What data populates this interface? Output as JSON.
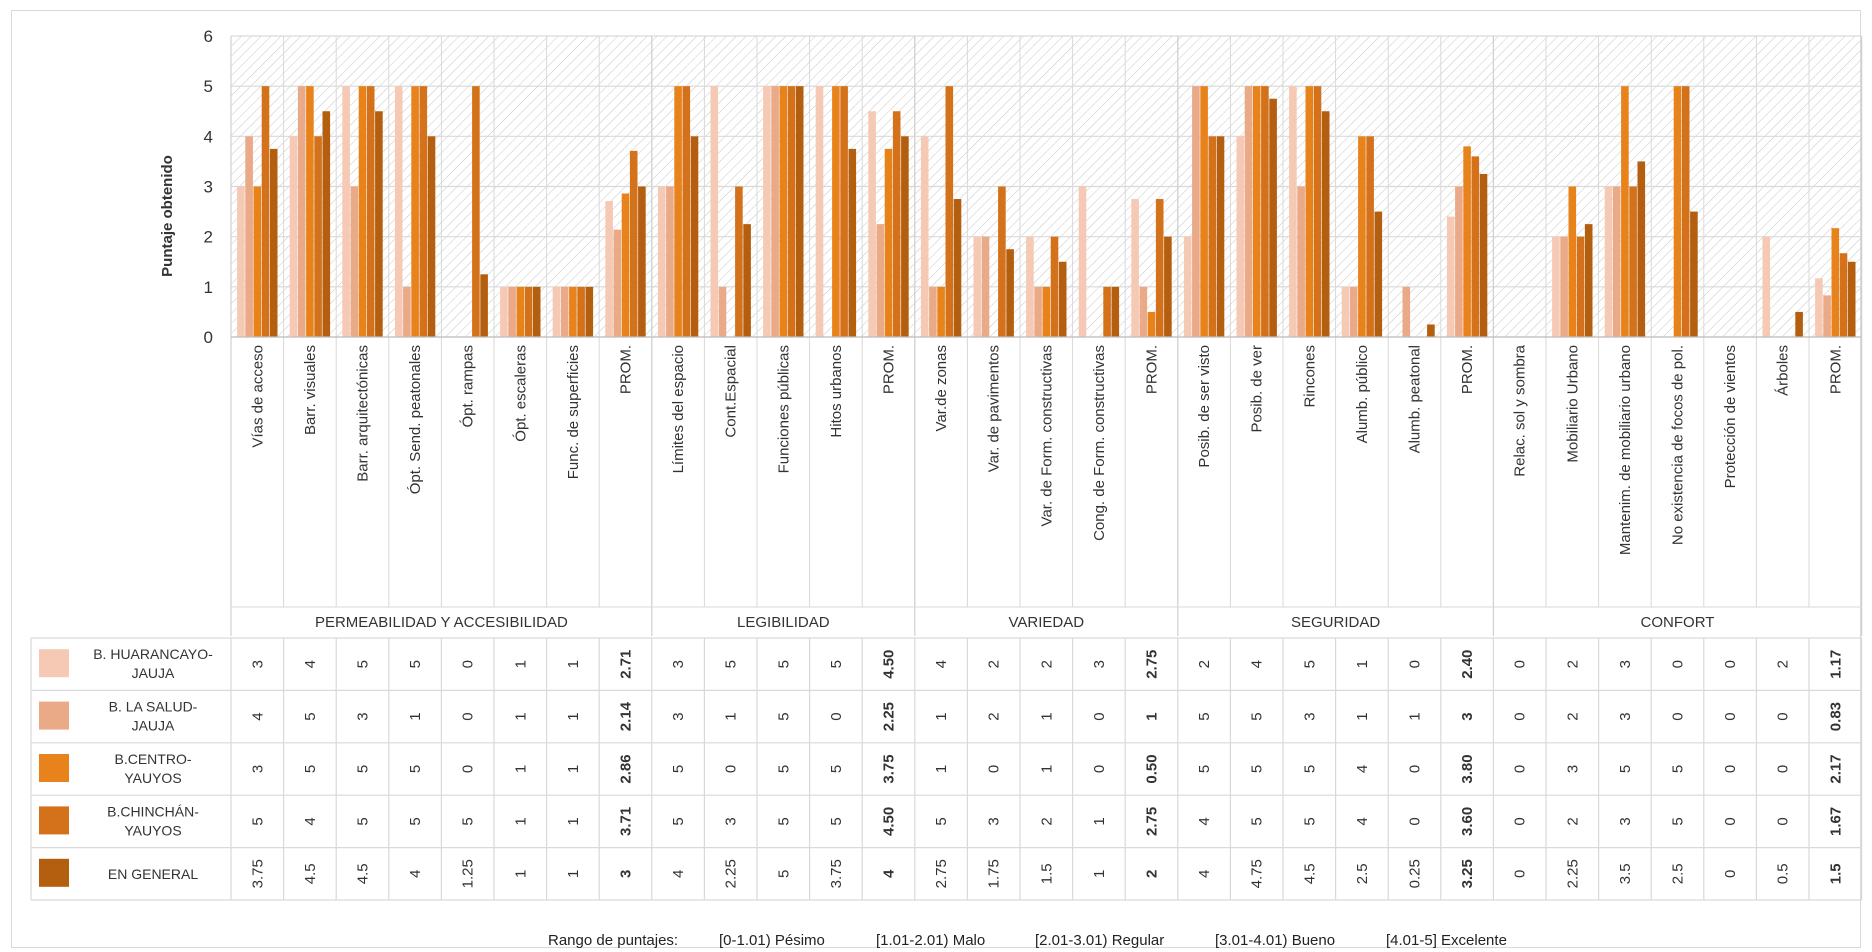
{
  "colors": {
    "series": [
      "#f5c9b4",
      "#eaa987",
      "#e8831b",
      "#d4711b",
      "#b45f0f"
    ],
    "grid": "#d9d9d9",
    "hatch": "#bfbfbf",
    "text": "#333333"
  },
  "chart_data": {
    "type": "bar",
    "title": "",
    "xlabel": "",
    "ylabel": "Puntaje obtenido",
    "ylim": [
      0,
      6
    ],
    "yticks": [
      "0",
      "1",
      "2",
      "3",
      "4",
      "5",
      "6"
    ],
    "grid": true,
    "background_hatch": true,
    "categories": [
      "Vías de acceso",
      "Barr. visuales",
      "Barr. arquitectónicas",
      "Ópt. Send. peatonales",
      "Ópt. rampas",
      "Ópt. escaleras",
      "Func. de superficies",
      "PROM.",
      "Límites del espacio",
      "Cont.Espacial",
      "Funciones públicas",
      "Hitos urbanos",
      "PROM.",
      "Var.de zonas",
      "Var. de pavimentos",
      "Var. de Form. constructivas",
      "Cong. de Form. constructivas",
      "PROM.",
      "Posib. de ser visto",
      "Posib. de ver",
      "Rincones",
      "Alumb. público",
      "Alumb. peatonal",
      "PROM.",
      "Relac. sol y sombra",
      "Mobiliario Urbano",
      "Mantenim. de mobiliario urbano",
      "No existencia de focos de pol.",
      "Protección de vientos",
      "Árboles",
      "PROM."
    ],
    "groups": [
      {
        "name": "PERMEABILIDAD Y ACCESIBILIDAD",
        "count": 8
      },
      {
        "name": "LEGIBILIDAD",
        "count": 5
      },
      {
        "name": "VARIEDAD",
        "count": 5
      },
      {
        "name": "SEGURIDAD",
        "count": 6
      },
      {
        "name": "CONFORT",
        "count": 7
      }
    ],
    "series": [
      {
        "name": "B. HUARANCAYO-JAUJA",
        "values": [
          3,
          4,
          5,
          5,
          0,
          1,
          1,
          2.71,
          3,
          5,
          5,
          5,
          4.5,
          4,
          2,
          2,
          3,
          2.75,
          2,
          4,
          5,
          1,
          0,
          2.4,
          0,
          2,
          3,
          0,
          0,
          2,
          1.17
        ],
        "labels": [
          "3",
          "4",
          "5",
          "5",
          "0",
          "1",
          "1",
          "2.71",
          "3",
          "5",
          "5",
          "5",
          "4.50",
          "4",
          "2",
          "2",
          "3",
          "2.75",
          "2",
          "4",
          "5",
          "1",
          "0",
          "2.40",
          "0",
          "2",
          "3",
          "0",
          "0",
          "2",
          "1.17"
        ]
      },
      {
        "name": "B. LA SALUD-JAUJA",
        "values": [
          4,
          5,
          3,
          1,
          0,
          1,
          1,
          2.14,
          3,
          1,
          5,
          0,
          2.25,
          1,
          2,
          1,
          0,
          1,
          5,
          5,
          3,
          1,
          1,
          3,
          0,
          2,
          3,
          0,
          0,
          0,
          0.83
        ],
        "labels": [
          "4",
          "5",
          "3",
          "1",
          "0",
          "1",
          "1",
          "2.14",
          "3",
          "1",
          "5",
          "0",
          "2.25",
          "1",
          "2",
          "1",
          "0",
          "1",
          "5",
          "5",
          "3",
          "1",
          "1",
          "3",
          "0",
          "2",
          "3",
          "0",
          "0",
          "0",
          "0.83"
        ]
      },
      {
        "name": "B.CENTRO-YAUYOS",
        "values": [
          3,
          5,
          5,
          5,
          0,
          1,
          1,
          2.86,
          5,
          0,
          5,
          5,
          3.75,
          1,
          0,
          1,
          0,
          0.5,
          5,
          5,
          5,
          4,
          0,
          3.8,
          0,
          3,
          5,
          5,
          0,
          0,
          2.17
        ],
        "labels": [
          "3",
          "5",
          "5",
          "5",
          "0",
          "1",
          "1",
          "2.86",
          "5",
          "0",
          "5",
          "5",
          "3.75",
          "1",
          "0",
          "1",
          "0",
          "0.50",
          "5",
          "5",
          "5",
          "4",
          "0",
          "3.80",
          "0",
          "3",
          "5",
          "5",
          "0",
          "0",
          "2.17"
        ]
      },
      {
        "name": "B.CHINCHÁN-YAUYOS",
        "values": [
          5,
          4,
          5,
          5,
          5,
          1,
          1,
          3.71,
          5,
          3,
          5,
          5,
          4.5,
          5,
          3,
          2,
          1,
          2.75,
          4,
          5,
          5,
          4,
          0,
          3.6,
          0,
          2,
          3,
          5,
          0,
          0,
          1.67
        ],
        "labels": [
          "5",
          "4",
          "5",
          "5",
          "5",
          "1",
          "1",
          "3.71",
          "5",
          "3",
          "5",
          "5",
          "4.50",
          "5",
          "3",
          "2",
          "1",
          "2.75",
          "4",
          "5",
          "5",
          "4",
          "0",
          "3.60",
          "0",
          "2",
          "3",
          "5",
          "0",
          "0",
          "1.67"
        ]
      },
      {
        "name": "EN GENERAL",
        "values": [
          3.75,
          4.5,
          4.5,
          4,
          1.25,
          1,
          1,
          3,
          4,
          2.25,
          5,
          3.75,
          4,
          2.75,
          1.75,
          1.5,
          1,
          2,
          4,
          4.75,
          4.5,
          2.5,
          0.25,
          3.25,
          0,
          2.25,
          3.5,
          2.5,
          0,
          0.5,
          1.5
        ],
        "labels": [
          "3.75",
          "4.5",
          "4.5",
          "4",
          "1.25",
          "1",
          "1",
          "3",
          "4",
          "2.25",
          "5",
          "3.75",
          "4",
          "2.75",
          "1.75",
          "1.5",
          "1",
          "2",
          "4",
          "4.75",
          "4.5",
          "2.5",
          "0.25",
          "3.25",
          "0",
          "2.25",
          "3.5",
          "2.5",
          "0",
          "0.5",
          "1.5"
        ]
      }
    ],
    "table_legend_labels": [
      [
        "B. HUARANCAYO-",
        "JAUJA"
      ],
      [
        "B. LA SALUD-",
        "JAUJA"
      ],
      [
        "B.CENTRO-",
        "YAUYOS"
      ],
      [
        "B.CHINCHÁN-",
        "YAUYOS"
      ],
      [
        "EN GENERAL"
      ]
    ],
    "annotations": {
      "range_title": "Rango de puntajes:",
      "ranges": [
        "[0-1.01) Pésimo",
        "[1.01-2.01) Malo",
        "[2.01-3.01) Regular",
        "[3.01-4.01) Bueno",
        "[4.01-5] Excelente"
      ]
    }
  }
}
